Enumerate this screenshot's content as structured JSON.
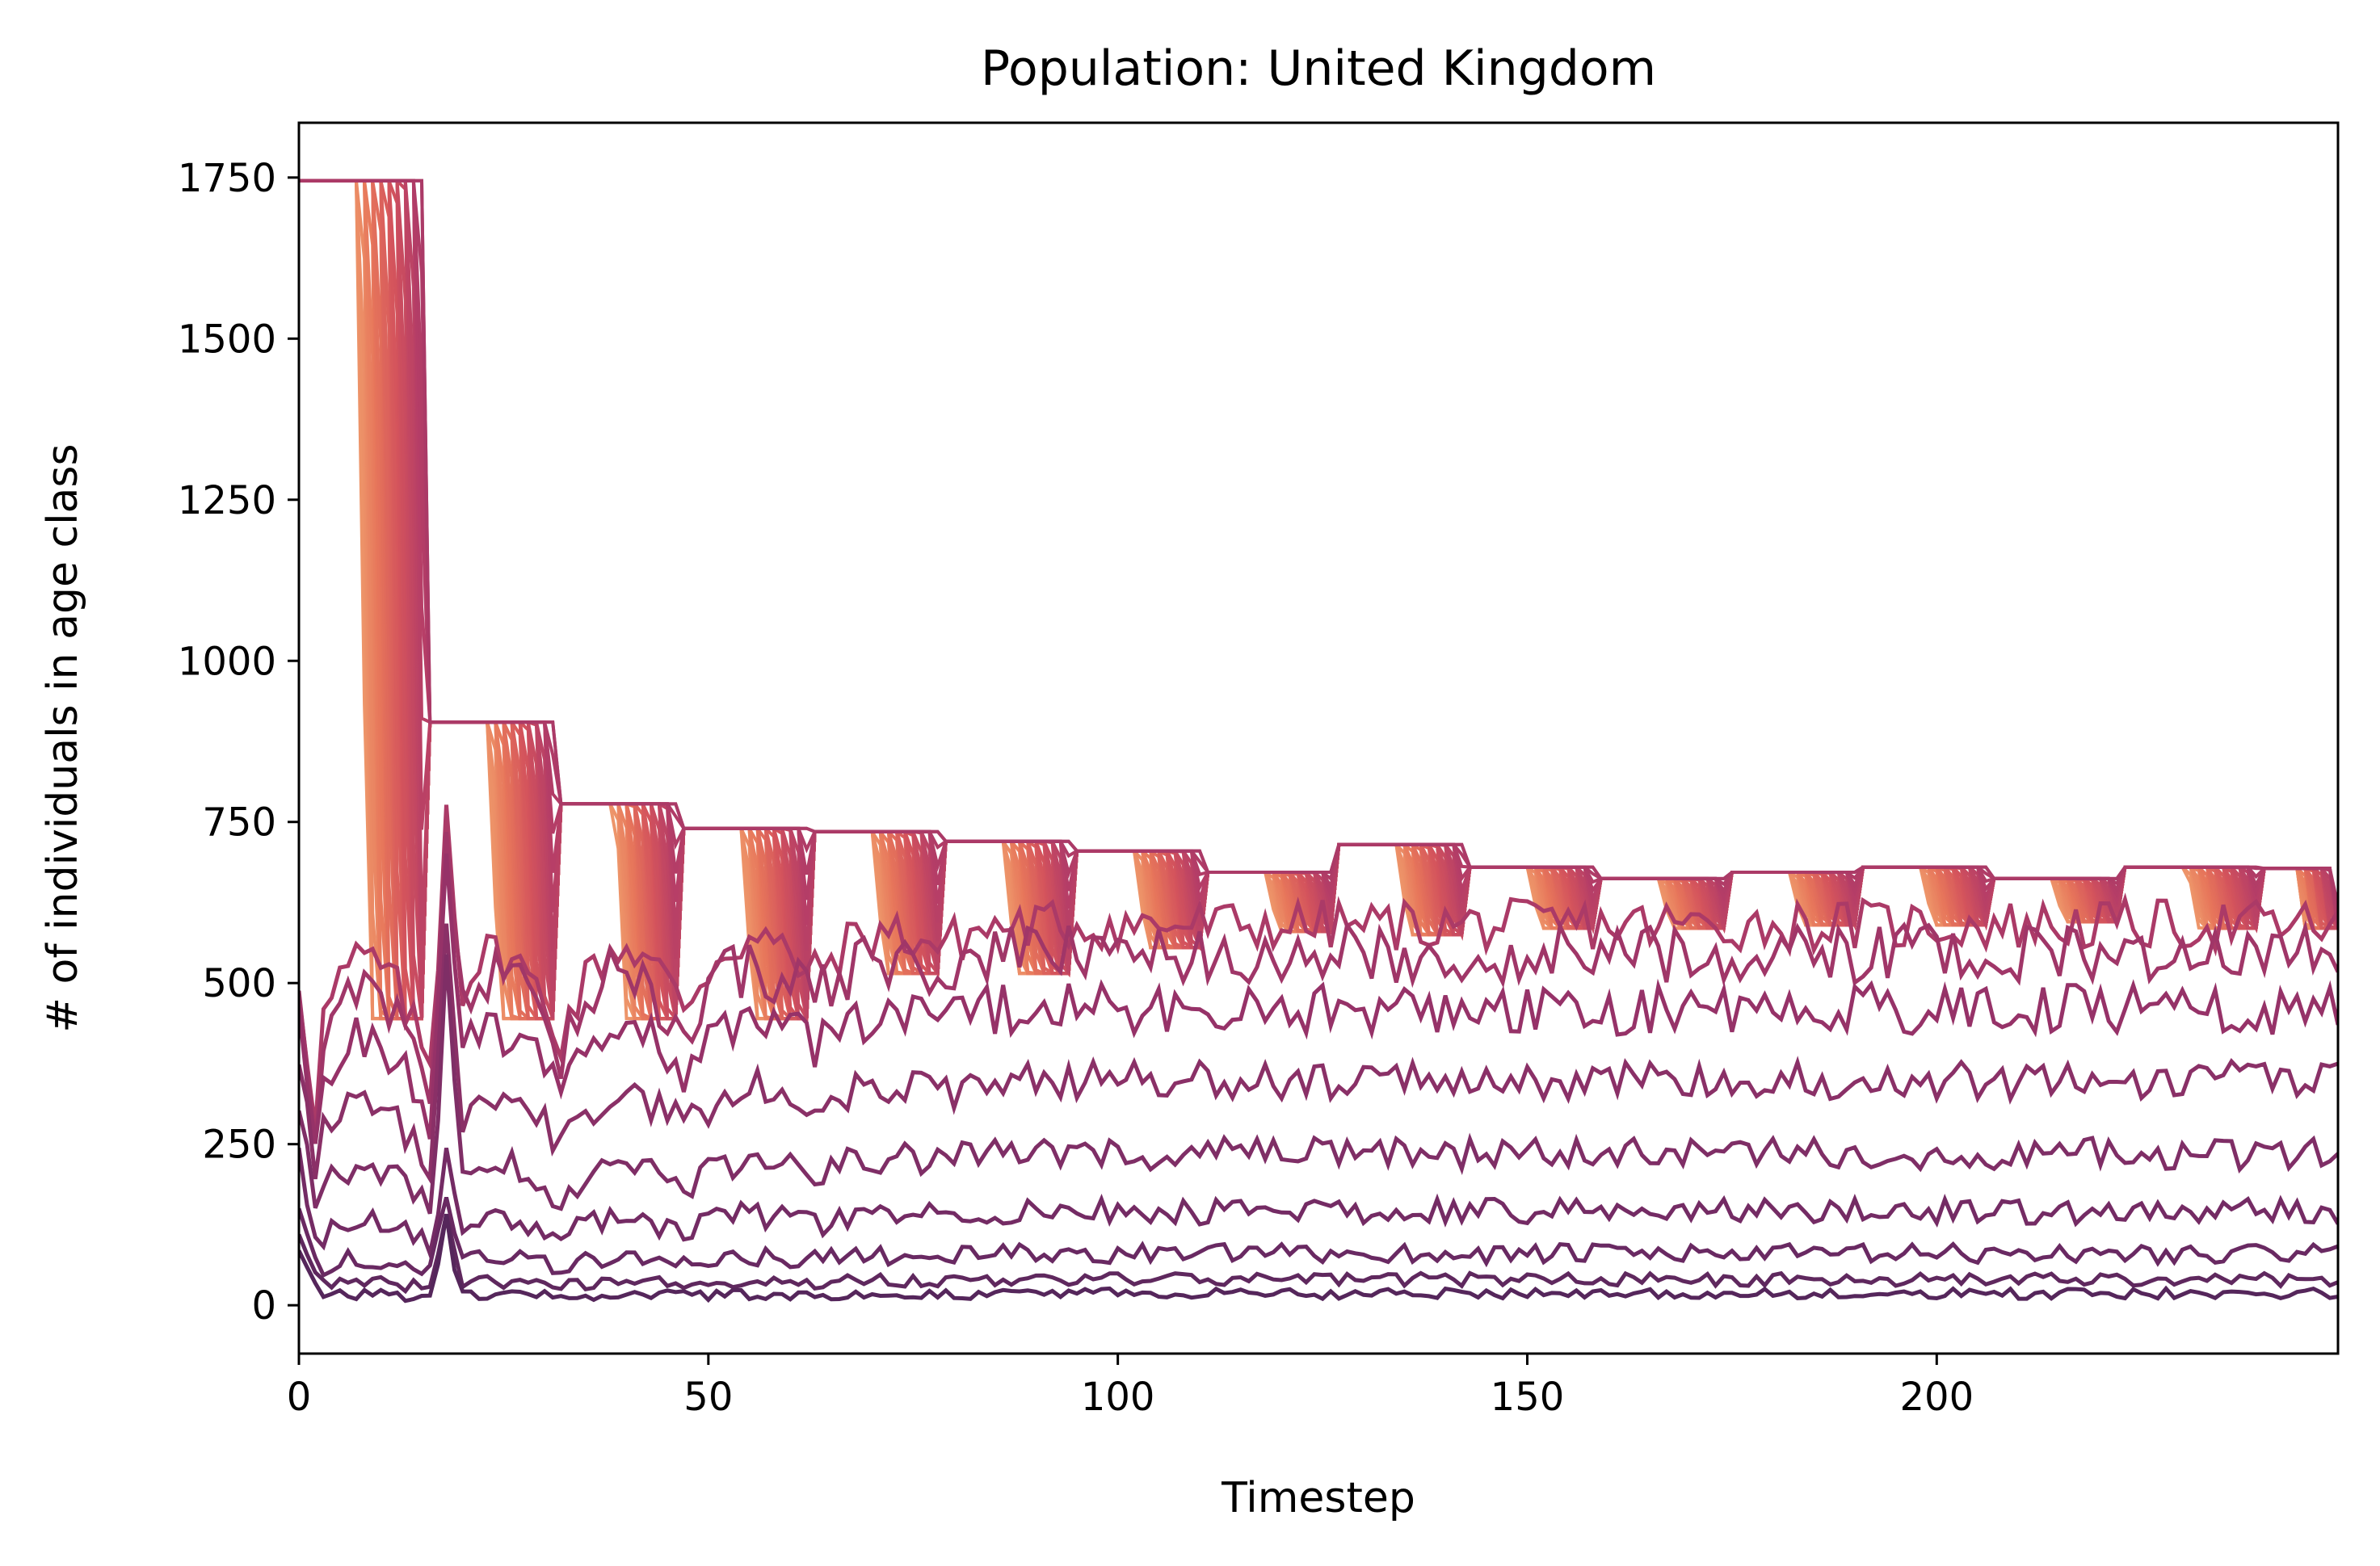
{
  "chart_data": {
    "type": "line",
    "title": "Population: United Kingdom",
    "xlabel": "Timestep",
    "ylabel": "# of individuals in age class",
    "xlim": [
      0,
      249
    ],
    "ylim": [
      -75,
      1835
    ],
    "xticks": [
      0,
      50,
      100,
      150,
      200
    ],
    "yticks": [
      0,
      250,
      500,
      750,
      1000,
      1250,
      1500,
      1750
    ],
    "grid": false,
    "legend": "none",
    "colormap": [
      "#f0a270",
      "#e7775b",
      "#d4545c",
      "#b63e67",
      "#923168",
      "#6c2a63",
      "#4b2457"
    ],
    "n_age_classes": 100,
    "adult_band": {
      "description_note": "",
      "cycles": [
        {
          "start": 0,
          "end": 16,
          "high": 1745,
          "low": 445
        },
        {
          "start": 16,
          "end": 32,
          "high": 905,
          "low": 445
        },
        {
          "start": 32,
          "end": 47,
          "high": 778,
          "low": 445
        },
        {
          "start": 47,
          "end": 63,
          "high": 740,
          "low": 445
        },
        {
          "start": 63,
          "end": 79,
          "high": 735,
          "low": 515
        },
        {
          "start": 79,
          "end": 95,
          "high": 720,
          "low": 515
        },
        {
          "start": 95,
          "end": 111,
          "high": 705,
          "low": 555
        },
        {
          "start": 111,
          "end": 127,
          "high": 672,
          "low": 580
        },
        {
          "start": 127,
          "end": 143,
          "high": 715,
          "low": 575
        },
        {
          "start": 143,
          "end": 159,
          "high": 680,
          "low": 585
        },
        {
          "start": 159,
          "end": 175,
          "high": 662,
          "low": 585
        },
        {
          "start": 175,
          "end": 191,
          "high": 672,
          "low": 590
        },
        {
          "start": 191,
          "end": 207,
          "high": 680,
          "low": 590
        },
        {
          "start": 207,
          "end": 223,
          "high": 662,
          "low": 595
        },
        {
          "start": 223,
          "end": 240,
          "high": 680,
          "low": 585
        },
        {
          "start": 240,
          "end": 249,
          "high": 678,
          "low": 585
        }
      ]
    },
    "juvenile_series": [
      {
        "initial": 500,
        "settle": 590,
        "noise": 40
      },
      {
        "initial": 480,
        "settle": 545,
        "noise": 45
      },
      {
        "initial": 430,
        "settle": 460,
        "noise": 40
      },
      {
        "initial": 390,
        "settle": 350,
        "noise": 30
      },
      {
        "initial": 300,
        "settle": 235,
        "noise": 25
      },
      {
        "initial": 230,
        "settle": 145,
        "noise": 20
      },
      {
        "initial": 160,
        "settle": 80,
        "noise": 15
      },
      {
        "initial": 110,
        "settle": 40,
        "noise": 10
      },
      {
        "initial": 80,
        "settle": 18,
        "noise": 8
      }
    ]
  }
}
